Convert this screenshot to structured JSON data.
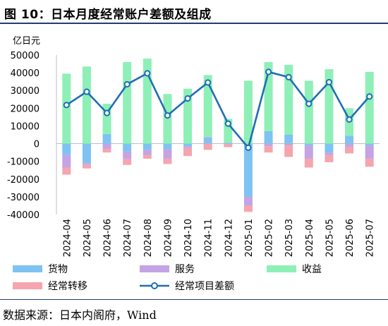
{
  "header": {
    "title": "图 10：日本月度经常账户差额及组成"
  },
  "footer": {
    "source": "数据来源：日本内阁府，Wind"
  },
  "colors": {
    "goods": "#7ec3f2",
    "services": "#c4a4e4",
    "income": "#8ef0b6",
    "transfers": "#f5a5ad",
    "balance": "#1f6eb5"
  },
  "chart_data": {
    "type": "bar",
    "title": "",
    "ylabel": "亿日元",
    "xlabel": "",
    "ylim": [
      -40000,
      50000
    ],
    "yticks": [
      50000,
      40000,
      30000,
      20000,
      10000,
      0,
      -10000,
      -20000,
      -30000,
      -40000
    ],
    "grid": false,
    "legend_position": "bottom",
    "categories": [
      "2024-04",
      "2024-05",
      "2024-06",
      "2024-07",
      "2024-08",
      "2024-09",
      "2024-10",
      "2024-11",
      "2024-12",
      "2025-01",
      "2025-02",
      "2025-03",
      "2025-04",
      "2025-05",
      "2025-06",
      "2025-07"
    ],
    "series": [
      {
        "name": "货物",
        "type": "stacked-bar",
        "values": [
          -6500,
          -11000,
          5500,
          -4500,
          -3500,
          -3000,
          -1500,
          3000,
          500,
          -30000,
          7000,
          5000,
          -1000,
          -5000,
          4500,
          -1000
        ]
      },
      {
        "name": "服务",
        "type": "stacked-bar",
        "values": [
          -7000,
          -1000,
          -3000,
          -4000,
          -3000,
          -5500,
          -1000,
          700,
          -500,
          -5000,
          -1500,
          -1000,
          -7500,
          -1500,
          -2000,
          -7500
        ]
      },
      {
        "name": "收益",
        "type": "stacked-bar",
        "values": [
          39500,
          43500,
          17000,
          46000,
          48000,
          28000,
          31000,
          35000,
          13500,
          35500,
          39000,
          39500,
          35500,
          42000,
          15500,
          40500
        ]
      },
      {
        "name": "经常转移",
        "type": "stacked-bar",
        "values": [
          -4000,
          -2000,
          -2000,
          -3500,
          -2000,
          -3000,
          -4500,
          -3500,
          -1500,
          -3500,
          -3500,
          -6500,
          -5000,
          -4000,
          -3500,
          -4500
        ]
      },
      {
        "name": "经常项目差额",
        "type": "line",
        "values": [
          21800,
          29300,
          17300,
          33500,
          39700,
          15900,
          25500,
          34500,
          11300,
          -2300,
          40500,
          37500,
          22500,
          34700,
          13600,
          26600
        ]
      }
    ]
  }
}
